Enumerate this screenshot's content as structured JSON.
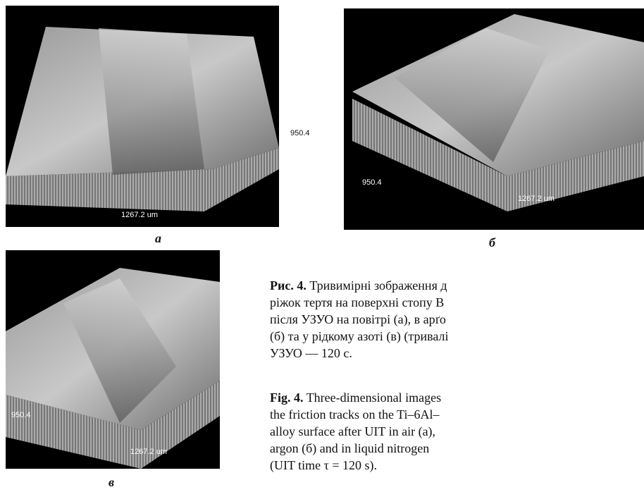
{
  "figure": {
    "panels": [
      {
        "label": "а",
        "height_label": "950.4",
        "width_label": "1267.2 um"
      },
      {
        "label": "б",
        "height_label": "950.4",
        "width_label": "1267.2 um"
      },
      {
        "label": "в",
        "height_label": "950.4",
        "width_label": "1267.2 um"
      }
    ],
    "caption_uk": {
      "label": "Рис. 4.",
      "lines": [
        "Тривимірні зображення д",
        "ріжок тертя на поверхні стопу В",
        "після УЗУО на повітрі (а), в арґо",
        "(б) та у рідкому азоті (в) (тривалі",
        "УЗУО — 120 с."
      ]
    },
    "caption_en": {
      "label": "Fig. 4.",
      "lines": [
        "Three-dimensional images",
        "the friction tracks on the Ti–6Al–",
        "alloy surface after UIT in air (a),",
        "argon (б) and in liquid nitrogen",
        "(UIT time τ = 120 s)."
      ]
    }
  }
}
